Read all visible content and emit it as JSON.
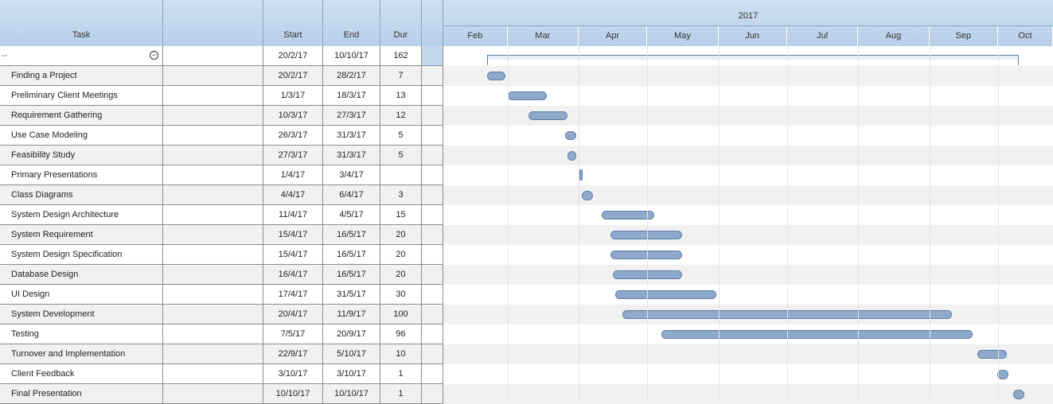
{
  "columns": {
    "task": "Task",
    "start": "Start",
    "end": "End",
    "dur": "Dur"
  },
  "year": "2017",
  "months": [
    "Feb",
    "Mar",
    "Apr",
    "May",
    "Jun",
    "Jul",
    "Aug",
    "Sep",
    "Oct"
  ],
  "summary": {
    "task": "--",
    "start": "20/2/17",
    "end": "10/10/17",
    "dur": "162",
    "start_day": 51,
    "end_day": 283
  },
  "tasks": [
    {
      "task": "Finding a Project",
      "start": "20/2/17",
      "end": "28/2/17",
      "dur": "7",
      "start_day": 51,
      "end_day": 59
    },
    {
      "task": "Preliminary Client Meetings",
      "start": "1/3/17",
      "end": "18/3/17",
      "dur": "13",
      "start_day": 60,
      "end_day": 77
    },
    {
      "task": "Requirement Gathering",
      "start": "10/3/17",
      "end": "27/3/17",
      "dur": "12",
      "start_day": 69,
      "end_day": 86
    },
    {
      "task": "Use Case Modeling",
      "start": "26/3/17",
      "end": "31/3/17",
      "dur": "5",
      "start_day": 85,
      "end_day": 90
    },
    {
      "task": "Feasibility Study",
      "start": "27/3/17",
      "end": "31/3/17",
      "dur": "5",
      "start_day": 86,
      "end_day": 90
    },
    {
      "task": "Primary Presentations",
      "start": "1/4/17",
      "end": "3/4/17",
      "dur": "",
      "start_day": 91,
      "end_day": 93
    },
    {
      "task": "Class Diagrams",
      "start": "4/4/17",
      "end": "6/4/17",
      "dur": "3",
      "start_day": 94,
      "end_day": 96
    },
    {
      "task": "System Design Architecture",
      "start": "11/4/17",
      "end": "4/5/17",
      "dur": "15",
      "start_day": 101,
      "end_day": 124
    },
    {
      "task": "System Requirement",
      "start": "15/4/17",
      "end": "16/5/17",
      "dur": "20",
      "start_day": 105,
      "end_day": 136
    },
    {
      "task": "System Design Specification",
      "start": "15/4/17",
      "end": "16/5/17",
      "dur": "20",
      "start_day": 105,
      "end_day": 136
    },
    {
      "task": "Database Design",
      "start": "16/4/17",
      "end": "16/5/17",
      "dur": "20",
      "start_day": 106,
      "end_day": 136
    },
    {
      "task": "UI Design",
      "start": "17/4/17",
      "end": "31/5/17",
      "dur": "30",
      "start_day": 107,
      "end_day": 151
    },
    {
      "task": "System Development",
      "start": "20/4/17",
      "end": "11/9/17",
      "dur": "100",
      "start_day": 110,
      "end_day": 254
    },
    {
      "task": "Testing",
      "start": "7/5/17",
      "end": "20/9/17",
      "dur": "96",
      "start_day": 127,
      "end_day": 263
    },
    {
      "task": "Turnover and Implementation",
      "start": "22/9/17",
      "end": "5/10/17",
      "dur": "10",
      "start_day": 265,
      "end_day": 278
    },
    {
      "task": "Client Feedback",
      "start": "3/10/17",
      "end": "3/10/17",
      "dur": "1",
      "start_day": 276,
      "end_day": 276
    },
    {
      "task": "Final Presentation",
      "start": "10/10/17",
      "end": "10/10/17",
      "dur": "1",
      "start_day": 283,
      "end_day": 283
    }
  ],
  "colors": {
    "bar_fill": "#8ea9cc",
    "bar_border": "#5e7ea6",
    "header": "#c3d7ec",
    "alt_row": "#f1f1f1"
  }
}
